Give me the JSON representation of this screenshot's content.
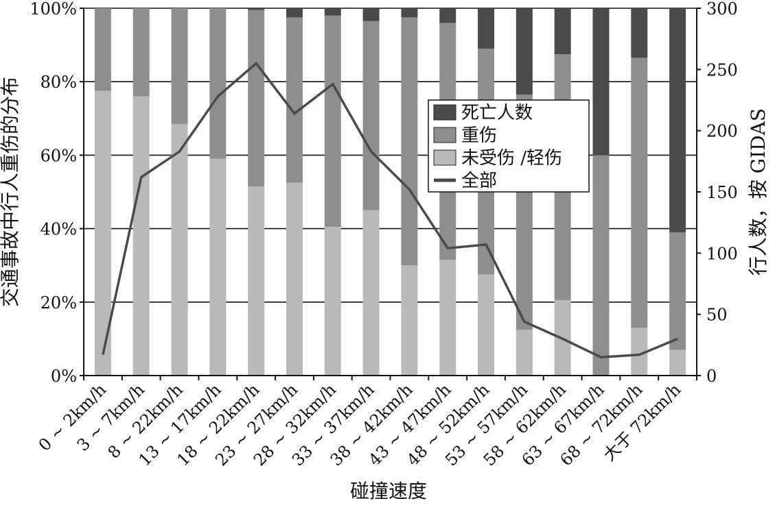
{
  "chart_data": {
    "type": "bar",
    "stacked": true,
    "percent_stacked": true,
    "categories": [
      "0 ~ 2km/h",
      "3 ~ 7km/h",
      "8 ~ 22km/h",
      "13 ~ 17km/h",
      "18 ~ 22km/h",
      "23 ~ 27km/h",
      "28 ~ 32km/h",
      "33 ~ 37km/h",
      "38 ~ 42km/h",
      "43 ~ 47km/h",
      "48 ~ 52km/h",
      "53 ~ 57km/h",
      "58 ~ 62km/h",
      "63 ~ 67km/h",
      "68 ~ 72km/h",
      "大于 72km/h"
    ],
    "series": [
      {
        "name": "未受伤 /轻伤",
        "axis": "left",
        "color": "#b9b9b9",
        "values": [
          77.5,
          76,
          68.5,
          59,
          51.5,
          52.5,
          40.5,
          45,
          30,
          31.5,
          27.5,
          12.5,
          20.5,
          0,
          13,
          7
        ]
      },
      {
        "name": "重伤",
        "axis": "left",
        "color": "#8e8e8e",
        "values": [
          22.5,
          24,
          31.5,
          41,
          48,
          45,
          57.5,
          51.5,
          67.5,
          64.5,
          61.5,
          64,
          67,
          60,
          73.5,
          32
        ]
      },
      {
        "name": "死亡人数",
        "axis": "left",
        "color": "#4a4a4a",
        "values": [
          0,
          0,
          0,
          0,
          0.5,
          2.5,
          2,
          3.5,
          2.5,
          4,
          11,
          23.5,
          12.5,
          40,
          13.5,
          61
        ]
      },
      {
        "name": "全部",
        "axis": "right",
        "type": "line",
        "color": "#4a4a4a",
        "values": [
          17,
          162,
          183,
          228,
          255,
          214,
          238,
          183,
          152,
          104,
          107,
          44,
          30,
          15,
          17,
          30
        ]
      }
    ],
    "left_axis": {
      "label": "交通事故中行人重伤的分布",
      "ylim": [
        0,
        100
      ],
      "ticks": [
        "0%",
        "20%",
        "40%",
        "60%",
        "80%",
        "100%"
      ]
    },
    "right_axis": {
      "label": "行人数，按 GIDAS",
      "ylim": [
        0,
        300
      ],
      "ticks": [
        "0",
        "50",
        "100",
        "150",
        "200",
        "250",
        "300"
      ]
    },
    "xlabel": "碰撞速度",
    "legend": {
      "position": "center-right",
      "order": [
        "死亡人数",
        "重伤",
        "未受伤 /轻伤",
        "全部"
      ]
    },
    "grid": true
  }
}
